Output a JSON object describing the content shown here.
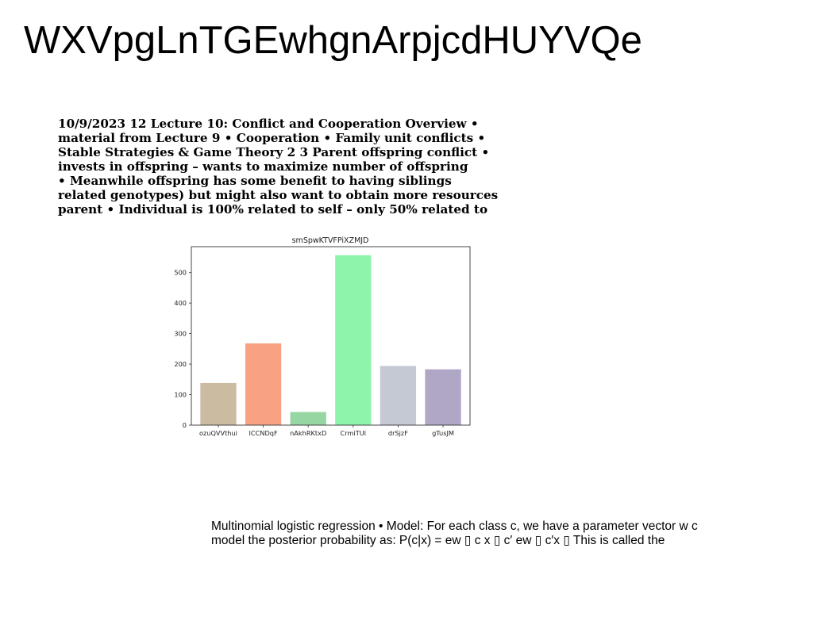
{
  "page": {
    "title": "WXVpgLnTGEwhgnArpjcdHUYVQe"
  },
  "lecture_text": {
    "lines": [
      "10/9/2023 12 Lecture 10: Conflict and Cooperation Overview •",
      "material from Lecture 9 • Cooperation • Family unit conflicts •",
      "Stable Strategies & Game Theory 2 3 Parent offspring conflict •",
      "invests in offspring – wants to maximize number of offspring",
      "• Meanwhile offspring has some benefit to having siblings",
      "related genotypes) but might also want to obtain more resources",
      "parent • Individual is 100% related to self – only 50% related to"
    ]
  },
  "regression_text": {
    "lines": [
      "Multinomial logistic regression • Model: For each class c, we have a parameter vector w c",
      "model the posterior probability as: P(c|x) = ew ▯ c x ▯ c′ ew ▯ c′x ▯ This is called the"
    ]
  },
  "chart_data": {
    "type": "bar",
    "title": "smSpwKTVFPiXZMJD",
    "categories": [
      "ozuQVVthui",
      "ICCNDqF",
      "nAkhRKtxD",
      "CrmiTUI",
      "drSjzF",
      "gTusJM"
    ],
    "values": [
      138,
      268,
      43,
      557,
      194,
      183
    ],
    "colors": [
      "#cbbba0",
      "#f9a283",
      "#96d6a3",
      "#8ff4ab",
      "#c5c9d4",
      "#b0a6c5"
    ],
    "ylim": [
      0,
      585
    ],
    "yticks": [
      "0",
      "100",
      "200",
      "300",
      "400",
      "500"
    ],
    "ytick_values": [
      0,
      100,
      200,
      300,
      400,
      500
    ],
    "xlabel": "",
    "ylabel": "",
    "grid": false
  }
}
